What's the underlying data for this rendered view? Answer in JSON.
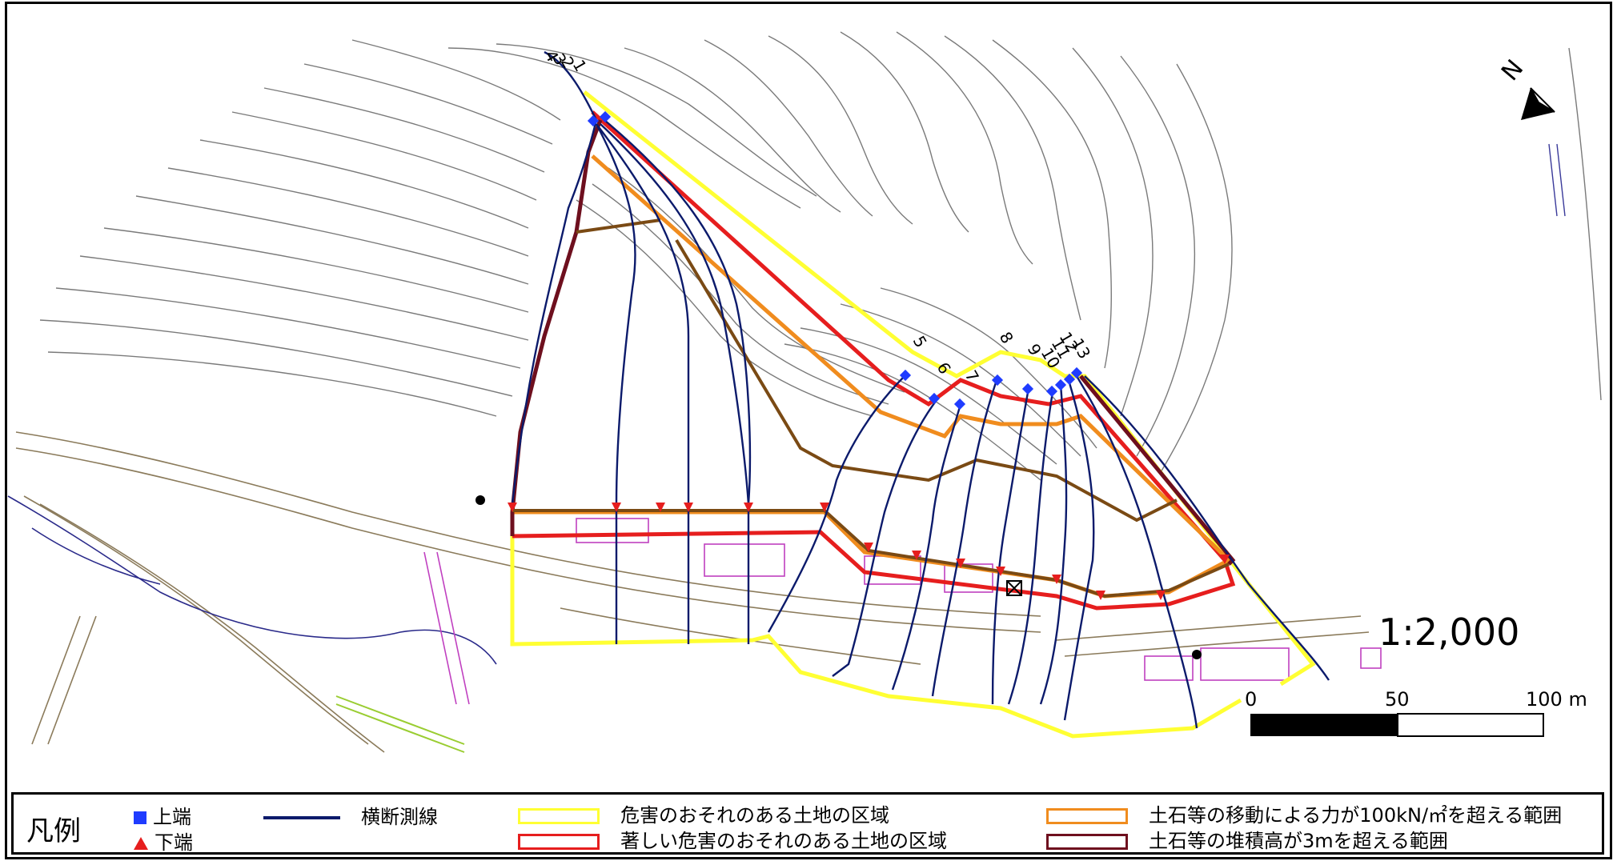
{
  "map": {
    "scale_text": "1:2,000",
    "scalebar_labels": [
      "0",
      "50",
      "100 m"
    ],
    "north_label": "N",
    "section_labels": [
      "4",
      "3",
      "2",
      "1",
      "5",
      "6",
      "7",
      "8",
      "9",
      "10",
      "11",
      "12",
      "13"
    ],
    "colors": {
      "contour": "#6e6e6e",
      "section_line": "#0b1a6b",
      "top_marker": "#1f3cff",
      "bottom_marker": "#e61e1e",
      "hazard_zone": "#ffff33",
      "severe_zone": "#e61e1e",
      "force_zone": "#f08c1e",
      "deposit_zone": "#6e0f1e",
      "brown_line": "#7a4a14",
      "buildings": "#c040c0"
    }
  },
  "legend": {
    "title": "凡例",
    "items": [
      {
        "key": "top",
        "label": "上端",
        "symbol": "blue-square"
      },
      {
        "key": "bottom",
        "label": "下端",
        "symbol": "red-triangle"
      },
      {
        "key": "section",
        "label": "横断測線",
        "symbol": "navy-line"
      },
      {
        "key": "hazard",
        "label": "危害のおそれのある土地の区域",
        "symbol": "yellow-box"
      },
      {
        "key": "severe",
        "label": "著しい危害のおそれのある土地の区域",
        "symbol": "red-box"
      },
      {
        "key": "force",
        "label": "土石等の移動による力が100kN/㎡を超える範囲",
        "symbol": "orange-box"
      },
      {
        "key": "deposit",
        "label": "土石等の堆積高が3mを超える範囲",
        "symbol": "darkred-box"
      }
    ]
  }
}
